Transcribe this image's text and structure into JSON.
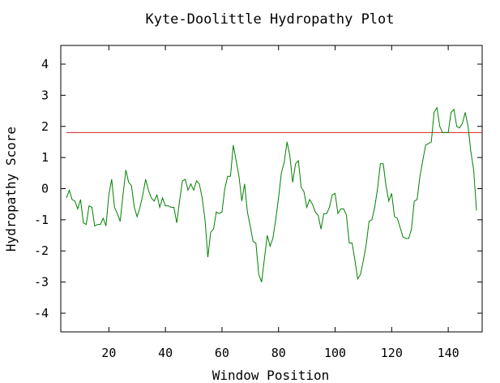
{
  "chart_data": {
    "type": "line",
    "title": "Kyte-Doolittle Hydropathy Plot",
    "xlabel": "Window Position",
    "ylabel": "Hydropathy Score",
    "xlim": [
      3,
      152
    ],
    "ylim": [
      -4.6,
      4.6
    ],
    "xticks": [
      20,
      40,
      60,
      80,
      100,
      120,
      140
    ],
    "yticks": [
      -4,
      -3,
      -2,
      -1,
      0,
      1,
      2,
      3,
      4
    ],
    "grid": false,
    "threshold": {
      "value": 1.8,
      "color": "#d22020"
    },
    "series": [
      {
        "color": "#008000",
        "x": [
          5,
          6,
          7,
          8,
          9,
          10,
          11,
          12,
          13,
          14,
          15,
          16,
          17,
          18,
          19,
          20,
          21,
          22,
          23,
          24,
          25,
          26,
          27,
          28,
          29,
          30,
          31,
          32,
          33,
          34,
          35,
          36,
          37,
          38,
          39,
          40,
          41,
          42,
          43,
          44,
          45,
          46,
          47,
          48,
          49,
          50,
          51,
          52,
          53,
          54,
          55,
          56,
          57,
          58,
          59,
          60,
          61,
          62,
          63,
          64,
          65,
          66,
          67,
          68,
          69,
          70,
          71,
          72,
          73,
          74,
          75,
          76,
          77,
          78,
          79,
          80,
          81,
          82,
          83,
          84,
          85,
          86,
          87,
          88,
          89,
          90,
          91,
          92,
          93,
          94,
          95,
          96,
          97,
          98,
          99,
          100,
          101,
          102,
          103,
          104,
          105,
          106,
          107,
          108,
          109,
          110,
          111,
          112,
          113,
          114,
          115,
          116,
          117,
          118,
          119,
          120,
          121,
          122,
          123,
          124,
          125,
          126,
          127,
          128,
          129,
          130,
          131,
          132,
          133,
          134,
          135,
          136,
          137,
          138,
          139,
          140,
          141,
          142,
          143,
          144,
          145,
          146,
          147,
          148,
          149,
          150
        ],
        "y": [
          -0.3,
          -0.05,
          -0.35,
          -0.4,
          -0.65,
          -0.35,
          -1.1,
          -1.15,
          -0.55,
          -0.6,
          -1.2,
          -1.15,
          -1.15,
          -0.95,
          -1.2,
          -0.2,
          0.3,
          -0.6,
          -0.8,
          -1.05,
          -0.2,
          0.6,
          0.2,
          0.1,
          -0.6,
          -0.9,
          -0.6,
          -0.2,
          0.3,
          -0.05,
          -0.3,
          -0.4,
          -0.2,
          -0.6,
          -0.3,
          -0.55,
          -0.55,
          -0.6,
          -0.6,
          -1.1,
          -0.4,
          0.25,
          0.3,
          -0.05,
          0.15,
          -0.05,
          0.25,
          0.15,
          -0.3,
          -1.0,
          -2.2,
          -1.4,
          -1.3,
          -0.75,
          -0.8,
          -0.75,
          0.0,
          0.4,
          0.4,
          1.4,
          0.9,
          0.4,
          -0.4,
          0.15,
          -0.75,
          -1.2,
          -1.7,
          -1.75,
          -2.75,
          -3.0,
          -2.25,
          -1.5,
          -1.85,
          -1.6,
          -1.0,
          -0.3,
          0.5,
          0.85,
          1.5,
          1.05,
          0.2,
          0.8,
          0.9,
          0.05,
          -0.1,
          -0.6,
          -0.35,
          -0.5,
          -0.75,
          -0.85,
          -1.3,
          -0.8,
          -0.8,
          -0.6,
          -0.2,
          -0.15,
          -0.8,
          -0.65,
          -0.65,
          -0.85,
          -1.75,
          -1.75,
          -2.3,
          -2.9,
          -2.75,
          -2.3,
          -1.8,
          -1.05,
          -1.0,
          -0.6,
          0.0,
          0.8,
          0.8,
          0.1,
          -0.4,
          -0.15,
          -0.9,
          -0.95,
          -1.25,
          -1.55,
          -1.6,
          -1.6,
          -1.3,
          -0.4,
          -0.35,
          0.4,
          0.9,
          1.4,
          1.45,
          1.5,
          2.45,
          2.6,
          2.0,
          1.8,
          1.8,
          1.8,
          2.45,
          2.55,
          2.0,
          1.95,
          2.1,
          2.45,
          2.0,
          1.2,
          0.6,
          -0.7
        ]
      }
    ]
  }
}
